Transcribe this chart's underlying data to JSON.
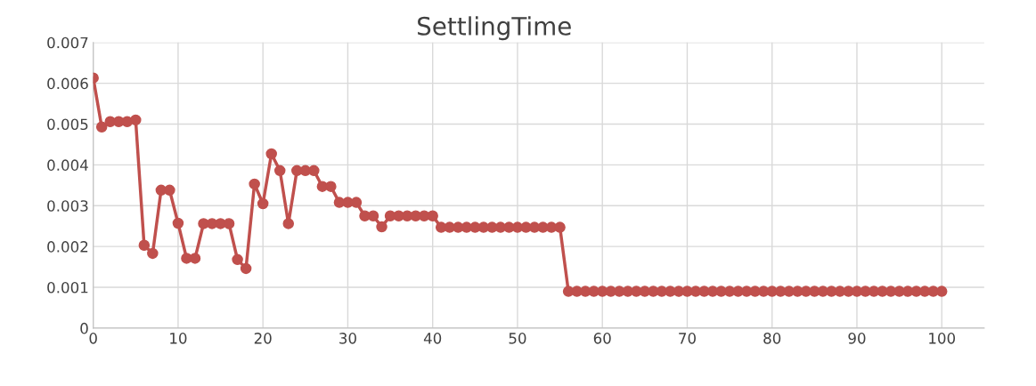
{
  "chart_data": {
    "type": "line",
    "title": "SettlingTime",
    "x": [
      0,
      1,
      2,
      3,
      4,
      5,
      6,
      7,
      8,
      9,
      10,
      11,
      12,
      13,
      14,
      15,
      16,
      17,
      18,
      19,
      20,
      21,
      22,
      23,
      24,
      25,
      26,
      27,
      28,
      29,
      30,
      31,
      32,
      33,
      34,
      35,
      36,
      37,
      38,
      39,
      40,
      41,
      42,
      43,
      44,
      45,
      46,
      47,
      48,
      49,
      50,
      51,
      52,
      53,
      54,
      55,
      56,
      57,
      58,
      59,
      60,
      61,
      62,
      63,
      64,
      65,
      66,
      67,
      68,
      69,
      70,
      71,
      72,
      73,
      74,
      75,
      76,
      77,
      78,
      79,
      80,
      81,
      82,
      83,
      84,
      85,
      86,
      87,
      88,
      89,
      90,
      91,
      92,
      93,
      94,
      95,
      96,
      97,
      98,
      99,
      100
    ],
    "series": [
      {
        "color": "#c0504d",
        "values": [
          0.00613,
          0.00493,
          0.00506,
          0.00506,
          0.00506,
          0.0051,
          0.00203,
          0.00183,
          0.00338,
          0.00338,
          0.00257,
          0.00171,
          0.00171,
          0.00256,
          0.00256,
          0.00256,
          0.00256,
          0.00168,
          0.00146,
          0.00353,
          0.00305,
          0.00427,
          0.00386,
          0.00256,
          0.00386,
          0.00386,
          0.00386,
          0.00347,
          0.00347,
          0.00308,
          0.00308,
          0.00308,
          0.00275,
          0.00275,
          0.00248,
          0.00275,
          0.00275,
          0.00275,
          0.00275,
          0.00275,
          0.00275,
          0.00247,
          0.00247,
          0.00247,
          0.00247,
          0.00247,
          0.00247,
          0.00247,
          0.00247,
          0.00247,
          0.00247,
          0.00247,
          0.00247,
          0.00247,
          0.00247,
          0.00247,
          0.0009,
          0.0009,
          0.0009,
          0.0009,
          0.0009,
          0.0009,
          0.0009,
          0.0009,
          0.0009,
          0.0009,
          0.0009,
          0.0009,
          0.0009,
          0.0009,
          0.0009,
          0.0009,
          0.0009,
          0.0009,
          0.0009,
          0.0009,
          0.0009,
          0.0009,
          0.0009,
          0.0009,
          0.0009,
          0.0009,
          0.0009,
          0.0009,
          0.0009,
          0.0009,
          0.0009,
          0.0009,
          0.0009,
          0.0009,
          0.0009,
          0.0009,
          0.0009,
          0.0009,
          0.0009,
          0.0009,
          0.0009,
          0.0009,
          0.0009,
          0.0009,
          0.0009
        ]
      }
    ],
    "xlim": [
      0,
      105
    ],
    "xticks": [
      0,
      10,
      20,
      30,
      40,
      50,
      60,
      70,
      80,
      90,
      100
    ],
    "ylim": [
      0,
      0.007
    ],
    "yticks": [
      0,
      0.001,
      0.002,
      0.003,
      0.004,
      0.005,
      0.006,
      0.007
    ],
    "grid": true,
    "marker": "circle",
    "line_style": "solid"
  }
}
